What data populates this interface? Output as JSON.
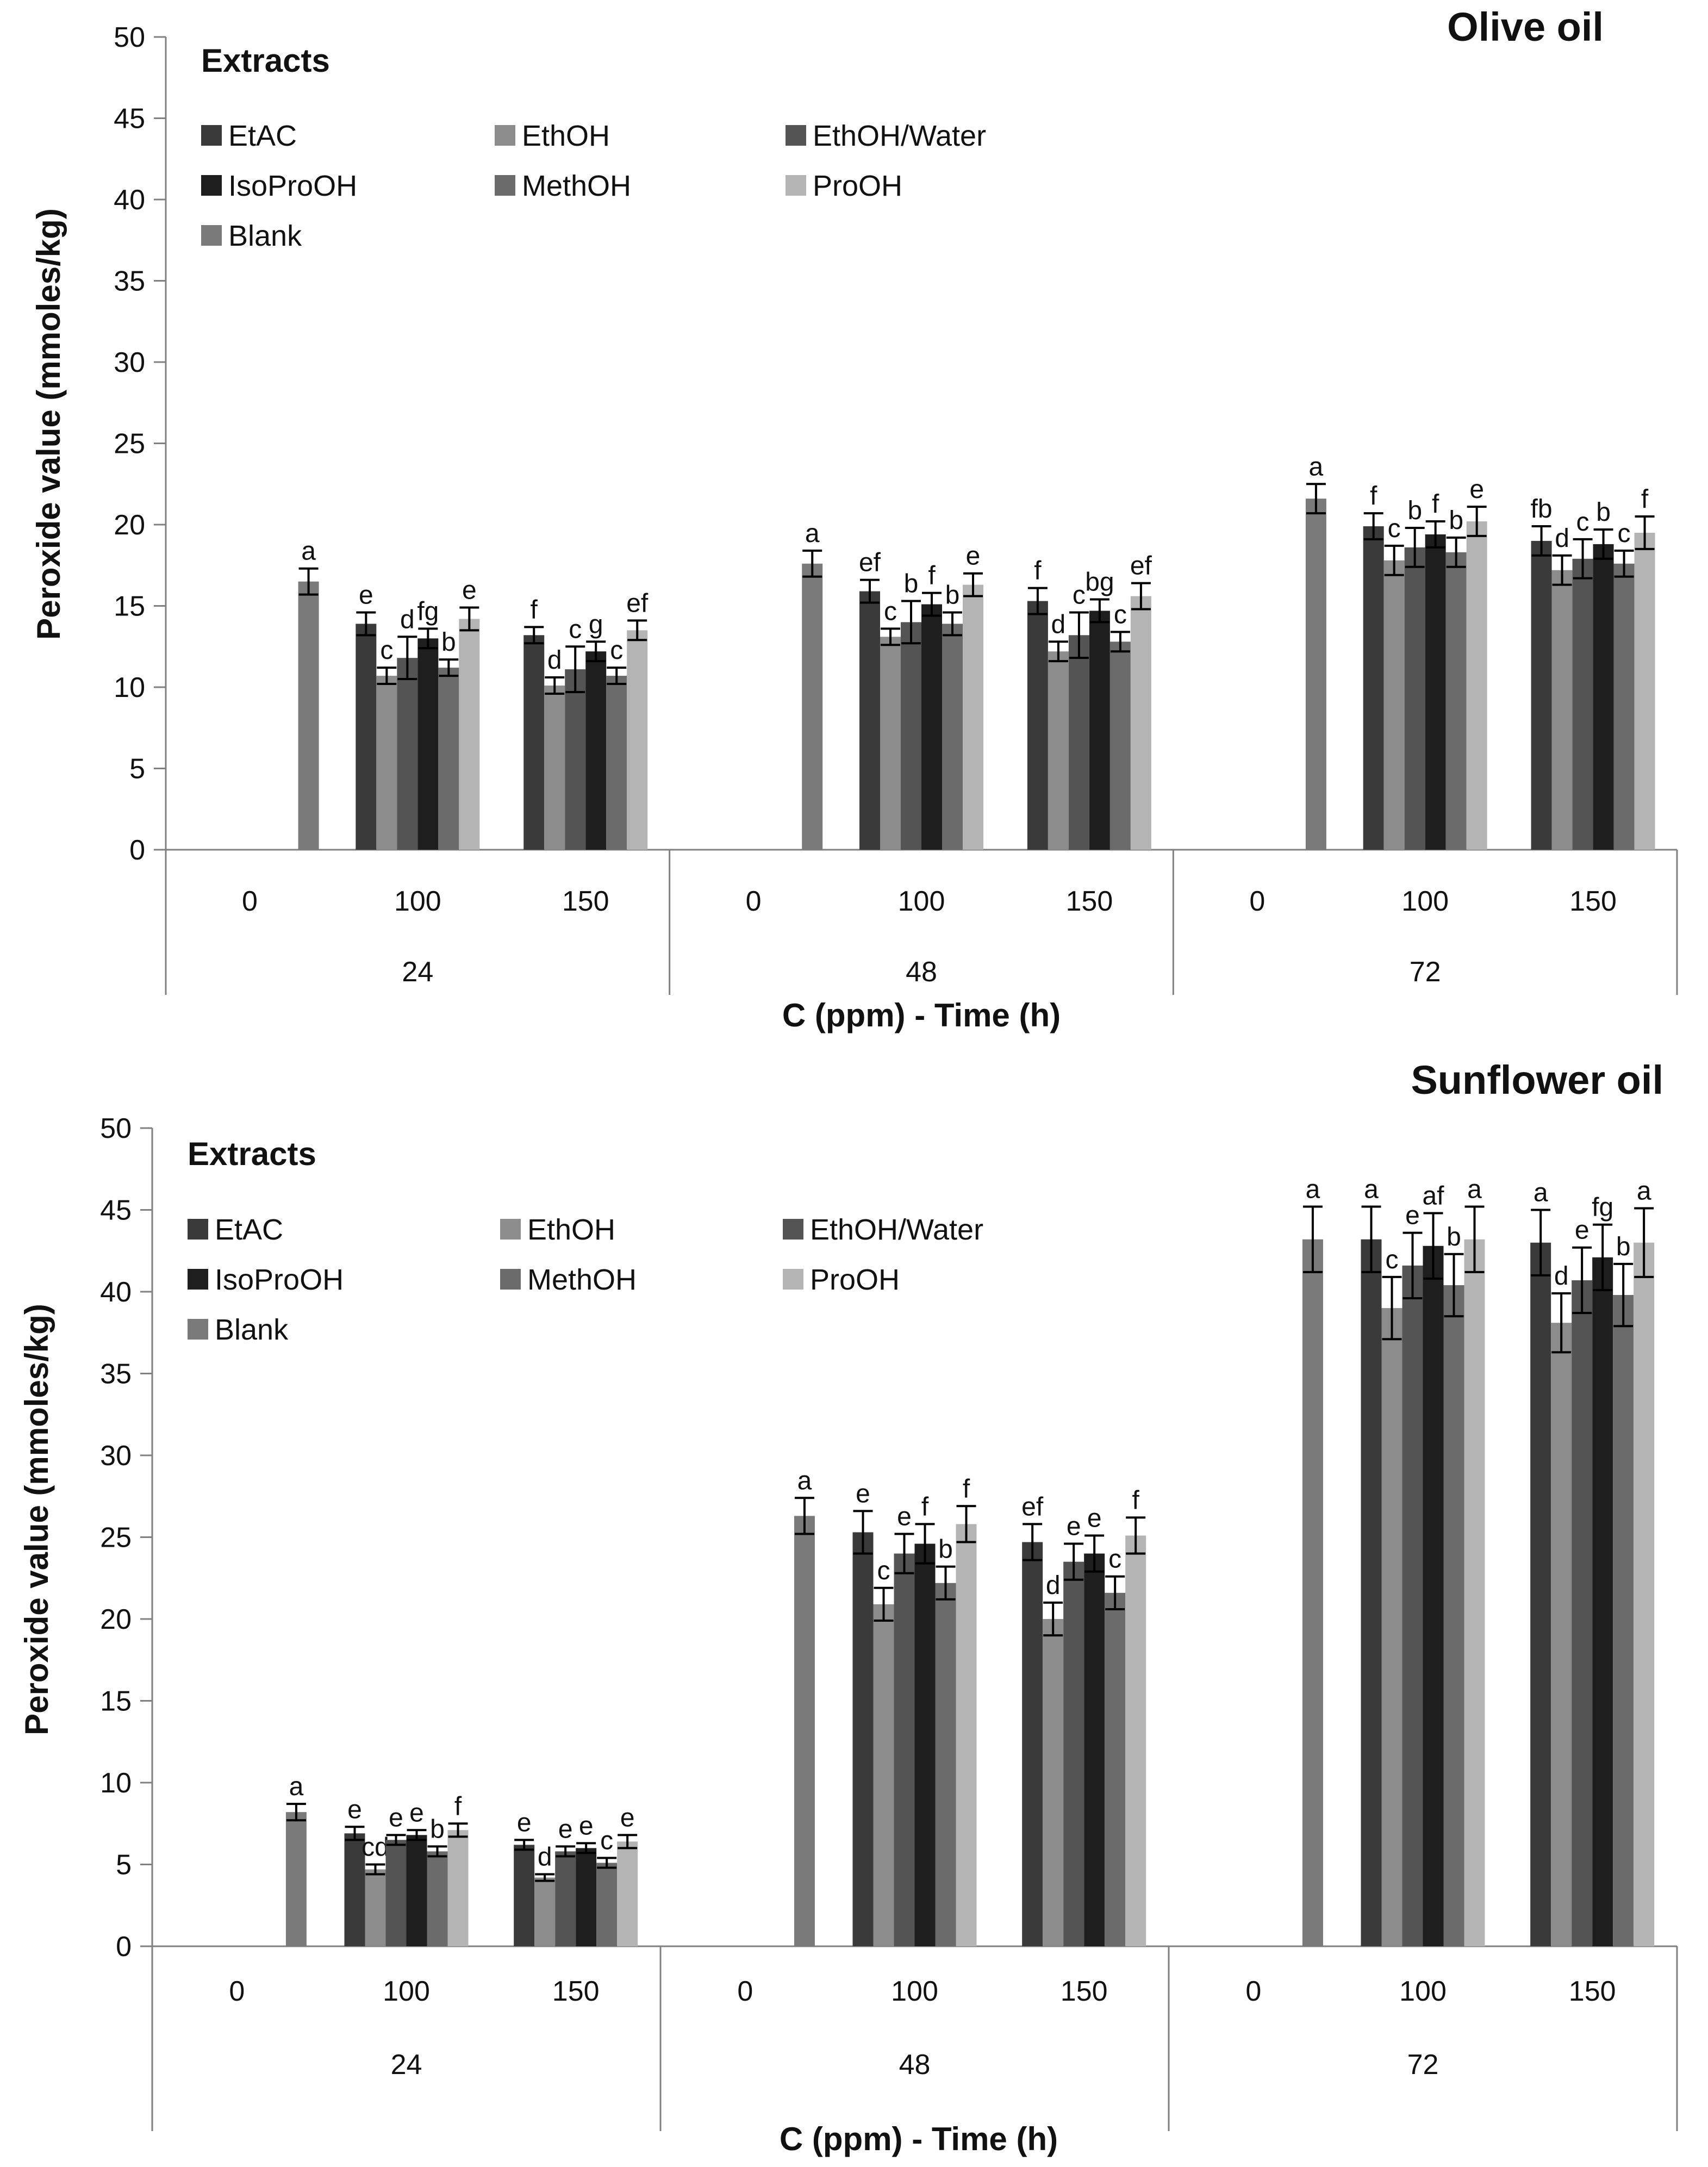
{
  "chart_data": [
    {
      "type": "bar",
      "title": "Olive oil",
      "xlabel": "C (ppm) - Time (h)",
      "ylabel": "Peroxide value (mmoles/kg)",
      "ylim": [
        0,
        50
      ],
      "yticks": [
        0,
        5,
        10,
        15,
        20,
        25,
        30,
        35,
        40,
        45,
        50
      ],
      "legend_title": "Extracts",
      "legend_position": "top-left",
      "groups": [
        {
          "time": "24",
          "concentrations": [
            "0",
            "100",
            "150"
          ]
        },
        {
          "time": "48",
          "concentrations": [
            "0",
            "100",
            "150"
          ]
        },
        {
          "time": "72",
          "concentrations": [
            "0",
            "100",
            "150"
          ]
        }
      ],
      "blank": {
        "name": "Blank",
        "values": [
          16.5,
          17.6,
          21.6
        ],
        "errors": [
          0.8,
          0.8,
          0.9
        ],
        "labels": [
          "a",
          "a",
          "a"
        ]
      },
      "series": [
        {
          "name": "EtAC",
          "values": [
            13.9,
            13.2,
            15.9,
            15.3,
            19.9,
            19.0
          ],
          "errors": [
            0.7,
            0.5,
            0.7,
            0.8,
            0.8,
            0.9
          ],
          "labels": [
            "e",
            "f",
            "ef",
            "f",
            "f",
            "fb"
          ]
        },
        {
          "name": "EthOH",
          "values": [
            10.7,
            10.1,
            13.1,
            12.2,
            17.8,
            17.2
          ],
          "errors": [
            0.5,
            0.5,
            0.5,
            0.6,
            0.9,
            0.9
          ],
          "labels": [
            "c",
            "d",
            "c",
            "d",
            "c",
            "d"
          ]
        },
        {
          "name": "EthOH/Water",
          "values": [
            11.8,
            11.1,
            14.0,
            13.2,
            18.6,
            17.9
          ],
          "errors": [
            1.3,
            1.4,
            1.3,
            1.4,
            1.2,
            1.2
          ],
          "labels": [
            "d",
            "c",
            "b",
            "c",
            "b",
            "c"
          ]
        },
        {
          "name": "IsoProOH",
          "values": [
            13.0,
            12.2,
            15.1,
            14.7,
            19.4,
            18.8
          ],
          "errors": [
            0.6,
            0.6,
            0.7,
            0.7,
            0.8,
            0.9
          ],
          "labels": [
            "fg",
            "g",
            "f",
            "bg",
            "f",
            "b"
          ]
        },
        {
          "name": "MethOH",
          "values": [
            11.2,
            10.7,
            13.9,
            12.8,
            18.3,
            17.6
          ],
          "errors": [
            0.5,
            0.5,
            0.7,
            0.6,
            0.9,
            0.8
          ],
          "labels": [
            "b",
            "c",
            "b",
            "c",
            "b",
            "c"
          ]
        },
        {
          "name": "ProOH",
          "values": [
            14.2,
            13.5,
            16.3,
            15.6,
            20.2,
            19.5
          ],
          "errors": [
            0.7,
            0.6,
            0.7,
            0.8,
            0.9,
            1.0
          ],
          "labels": [
            "e",
            "ef",
            "e",
            "ef",
            "e",
            "f"
          ]
        }
      ],
      "colors": {
        "EtAC": "#3a3a3a",
        "EthOH": "#8c8c8c",
        "EthOH/Water": "#545454",
        "IsoProOH": "#1e1e1e",
        "MethOH": "#6b6b6b",
        "ProOH": "#b4b4b4",
        "Blank": "#7a7a7a"
      }
    },
    {
      "type": "bar",
      "title": "Sunflower oil",
      "xlabel": "C (ppm) - Time (h)",
      "ylabel": "Peroxide value (mmoles/kg)",
      "ylim": [
        0,
        50
      ],
      "yticks": [
        0,
        5,
        10,
        15,
        20,
        25,
        30,
        35,
        40,
        45,
        50
      ],
      "legend_title": "Extracts",
      "legend_position": "top-left",
      "groups": [
        {
          "time": "24",
          "concentrations": [
            "0",
            "100",
            "150"
          ]
        },
        {
          "time": "48",
          "concentrations": [
            "0",
            "100",
            "150"
          ]
        },
        {
          "time": "72",
          "concentrations": [
            "0",
            "100",
            "150"
          ]
        }
      ],
      "blank": {
        "name": "Blank",
        "values": [
          8.2,
          26.3,
          43.2
        ],
        "errors": [
          0.5,
          1.1,
          2.0
        ],
        "labels": [
          "a",
          "a",
          "a"
        ]
      },
      "series": [
        {
          "name": "EtAC",
          "values": [
            6.9,
            6.2,
            25.3,
            24.7,
            43.2,
            43.0
          ],
          "errors": [
            0.4,
            0.3,
            1.3,
            1.1,
            2.0,
            2.0
          ],
          "labels": [
            "e",
            "e",
            "e",
            "ef",
            "a",
            "a"
          ]
        },
        {
          "name": "EthOH",
          "values": [
            4.7,
            4.2,
            20.9,
            20.0,
            39.0,
            38.1
          ],
          "errors": [
            0.3,
            0.2,
            1.0,
            1.0,
            1.9,
            1.8
          ],
          "labels": [
            "cd",
            "d",
            "c",
            "d",
            "c",
            "d"
          ]
        },
        {
          "name": "EthOH/Water",
          "values": [
            6.5,
            5.8,
            24.0,
            23.5,
            41.6,
            40.7
          ],
          "errors": [
            0.3,
            0.3,
            1.2,
            1.1,
            2.0,
            2.0
          ],
          "labels": [
            "e",
            "e",
            "e",
            "e",
            "e",
            "e"
          ]
        },
        {
          "name": "IsoProOH",
          "values": [
            6.8,
            6.0,
            24.6,
            24.0,
            42.8,
            42.1
          ],
          "errors": [
            0.3,
            0.3,
            1.2,
            1.1,
            2.0,
            2.0
          ],
          "labels": [
            "e",
            "e",
            "f",
            "e",
            "af",
            "fg"
          ]
        },
        {
          "name": "MethOH",
          "values": [
            5.8,
            5.1,
            22.2,
            21.6,
            40.4,
            39.8
          ],
          "errors": [
            0.3,
            0.3,
            1.0,
            1.0,
            1.9,
            1.9
          ],
          "labels": [
            "b",
            "c",
            "b",
            "c",
            "b",
            "b"
          ]
        },
        {
          "name": "ProOH",
          "values": [
            7.1,
            6.4,
            25.8,
            25.1,
            43.2,
            43.0
          ],
          "errors": [
            0.4,
            0.4,
            1.1,
            1.1,
            2.0,
            2.1
          ],
          "labels": [
            "f",
            "e",
            "f",
            "f",
            "a",
            "a"
          ]
        }
      ],
      "colors": {
        "EtAC": "#3a3a3a",
        "EthOH": "#8c8c8c",
        "EthOH/Water": "#545454",
        "IsoProOH": "#1e1e1e",
        "MethOH": "#6b6b6b",
        "ProOH": "#b4b4b4",
        "Blank": "#7a7a7a"
      }
    }
  ]
}
